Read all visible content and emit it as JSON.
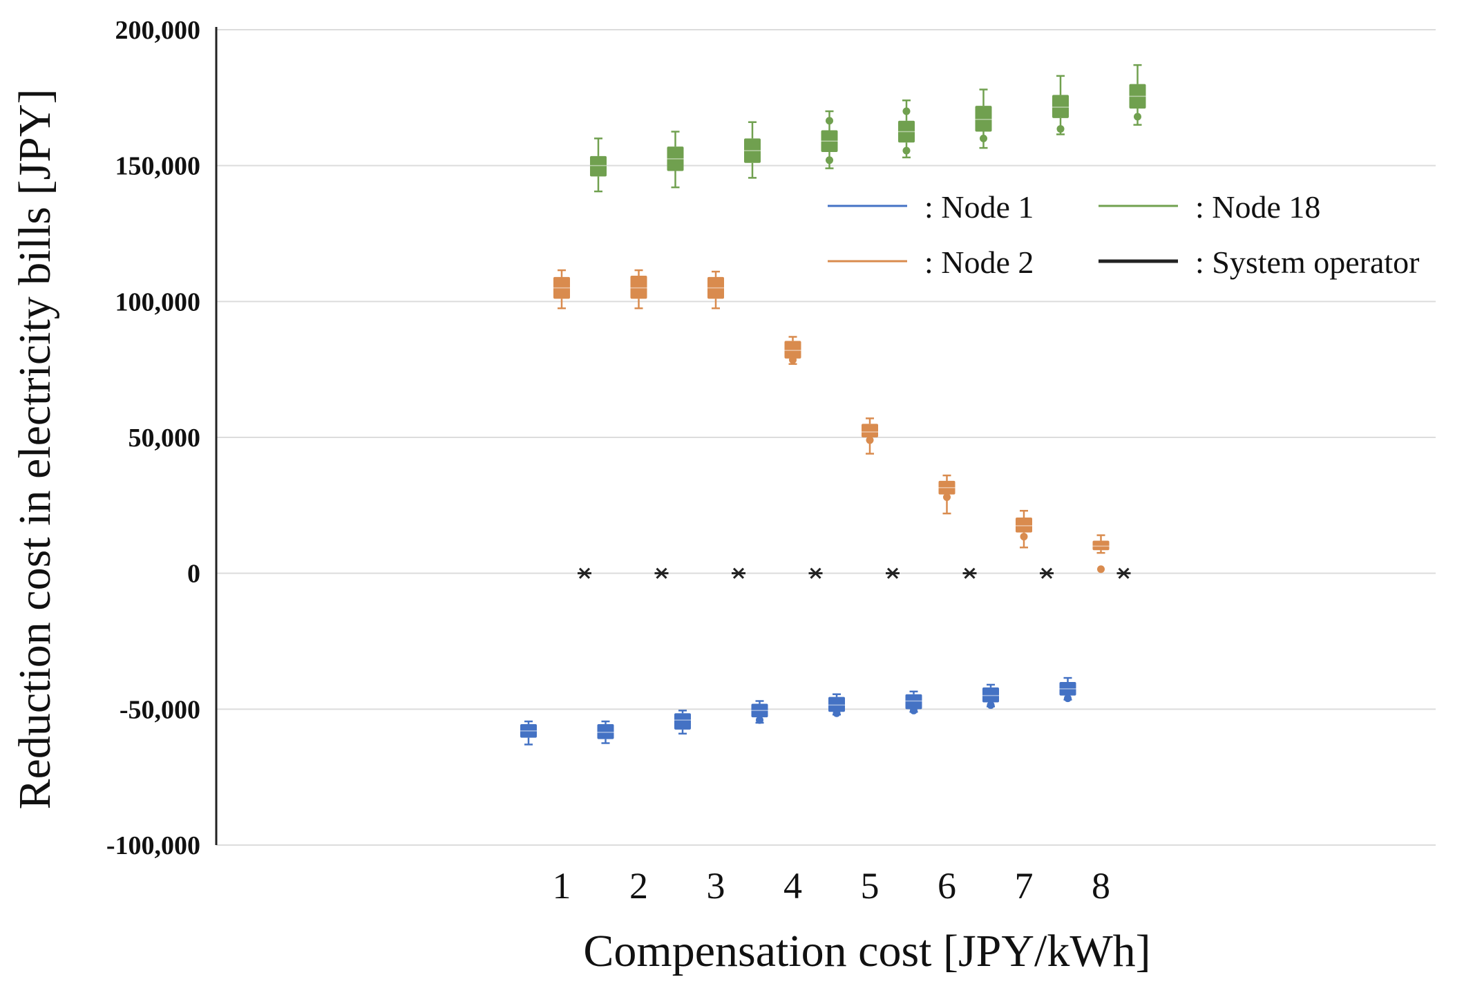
{
  "chart_data": {
    "type": "box",
    "title": "",
    "xlabel": "Compensation cost [JPY/kWh]",
    "ylabel": "Reduction cost in electricity bills [JPY]",
    "ylim": [
      -100000,
      200000
    ],
    "yticks": [
      {
        "value": 200000,
        "label": "200,000"
      },
      {
        "value": 150000,
        "label": "150,000"
      },
      {
        "value": 100000,
        "label": "100,000"
      },
      {
        "value": 50000,
        "label": "50,000"
      },
      {
        "value": 0,
        "label": "0"
      },
      {
        "value": -50000,
        "label": "-50,000"
      },
      {
        "value": -100000,
        "label": "-100,000"
      }
    ],
    "categories": [
      "1",
      "2",
      "3",
      "4",
      "5",
      "6",
      "7",
      "8"
    ],
    "grid": true,
    "legend_position": "top-right",
    "series": [
      {
        "name": "Node 1",
        "legend_label": ": Node 1",
        "color": "#4472C4",
        "boxes": [
          {
            "min": -63000,
            "q1": -60500,
            "median": -58000,
            "q3": -55500,
            "max": -54500,
            "outliers": []
          },
          {
            "min": -62500,
            "q1": -61000,
            "median": -58500,
            "q3": -55500,
            "max": -54500,
            "outliers": []
          },
          {
            "min": -59000,
            "q1": -57500,
            "median": -54000,
            "q3": -51500,
            "max": -50500,
            "outliers": []
          },
          {
            "min": -55000,
            "q1": -53000,
            "median": -50500,
            "q3": -48000,
            "max": -47000,
            "outliers": [
              -54000
            ]
          },
          {
            "min": -52000,
            "q1": -51000,
            "median": -48500,
            "q3": -45500,
            "max": -44500,
            "outliers": [
              -51500
            ]
          },
          {
            "min": -51000,
            "q1": -50000,
            "median": -47000,
            "q3": -44500,
            "max": -43500,
            "outliers": [
              -50500
            ]
          },
          {
            "min": -49000,
            "q1": -47500,
            "median": -45000,
            "q3": -42000,
            "max": -41000,
            "outliers": [
              -48500
            ]
          },
          {
            "min": -46500,
            "q1": -45000,
            "median": -42500,
            "q3": -40000,
            "max": -38500,
            "outliers": [
              -46000
            ]
          }
        ]
      },
      {
        "name": "Node 2",
        "legend_label": ": Node 2",
        "color": "#D98B4E",
        "boxes": [
          {
            "min": 97500,
            "q1": 101000,
            "median": 105000,
            "q3": 109000,
            "max": 111500,
            "outliers": []
          },
          {
            "min": 97500,
            "q1": 101000,
            "median": 105000,
            "q3": 109500,
            "max": 111500,
            "outliers": []
          },
          {
            "min": 97500,
            "q1": 101000,
            "median": 105000,
            "q3": 109000,
            "max": 111000,
            "outliers": []
          },
          {
            "min": 77000,
            "q1": 79000,
            "median": 82000,
            "q3": 85500,
            "max": 87000,
            "outliers": [
              78500
            ]
          },
          {
            "min": 44000,
            "q1": 50000,
            "median": 52000,
            "q3": 55000,
            "max": 57000,
            "outliers": [
              49000
            ]
          },
          {
            "min": 22000,
            "q1": 29000,
            "median": 31500,
            "q3": 34000,
            "max": 36000,
            "outliers": [
              28000
            ]
          },
          {
            "min": 9500,
            "q1": 15000,
            "median": 17500,
            "q3": 20500,
            "max": 23000,
            "outliers": [
              13500
            ]
          },
          {
            "min": 7500,
            "q1": 8500,
            "median": 10000,
            "q3": 12000,
            "max": 14000,
            "outliers": [
              1500
            ]
          }
        ]
      },
      {
        "name": "Node 18",
        "legend_label": ": Node 18",
        "color": "#70A04F",
        "boxes": [
          {
            "min": 140500,
            "q1": 146000,
            "median": 150000,
            "q3": 153500,
            "max": 160000,
            "outliers": []
          },
          {
            "min": 142000,
            "q1": 148000,
            "median": 152500,
            "q3": 157000,
            "max": 162500,
            "outliers": []
          },
          {
            "min": 145500,
            "q1": 151000,
            "median": 155500,
            "q3": 160000,
            "max": 166000,
            "outliers": []
          },
          {
            "min": 149000,
            "q1": 155000,
            "median": 159000,
            "q3": 163000,
            "max": 170000,
            "outliers": [
              152000,
              166500
            ]
          },
          {
            "min": 153000,
            "q1": 158500,
            "median": 162500,
            "q3": 166500,
            "max": 174000,
            "outliers": [
              155500,
              170000
            ]
          },
          {
            "min": 156500,
            "q1": 162500,
            "median": 167000,
            "q3": 172000,
            "max": 178000,
            "outliers": [
              160000
            ]
          },
          {
            "min": 161500,
            "q1": 167500,
            "median": 171500,
            "q3": 176000,
            "max": 183000,
            "outliers": [
              163500
            ]
          },
          {
            "min": 165000,
            "q1": 171000,
            "median": 175500,
            "q3": 180000,
            "max": 187000,
            "outliers": [
              168000
            ]
          }
        ]
      },
      {
        "name": "System operator",
        "legend_label": ": System operator",
        "color": "#222222",
        "values": [
          0,
          0,
          0,
          0,
          0,
          0,
          0,
          0
        ]
      }
    ]
  }
}
